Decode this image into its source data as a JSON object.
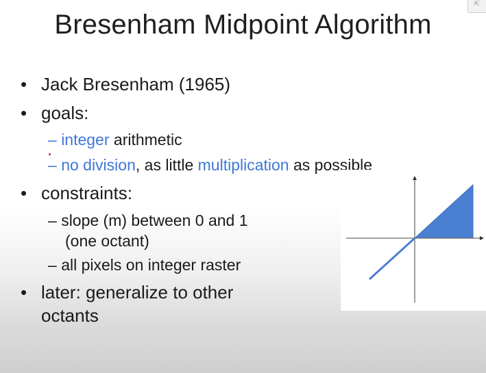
{
  "slide": {
    "title": "Bresenham Midpoint Algorithm",
    "bullet_symbol": "•",
    "dash_symbol": "–",
    "bullets": [
      {
        "text": "Jack Bresenham (1965)"
      },
      {
        "text": "goals:"
      },
      {
        "text": "constraints:"
      },
      {
        "text_line1": "later: generalize to other",
        "text_line2": "octants"
      }
    ],
    "goals": {
      "item1": {
        "highlight": "integer",
        "rest": " arithmetic"
      },
      "item2": {
        "highlight1": "no division",
        "middle": ", as little ",
        "highlight2": "multiplication",
        "rest": " as possible"
      }
    },
    "constraints": {
      "item1_line1": "slope (m) between 0 and 1",
      "item1_line2": "(one octant)",
      "item2": "all pixels on integer raster"
    }
  },
  "colors": {
    "highlight": "#3d78d8",
    "octant_fill": "#4a7fd1"
  },
  "diagram": {
    "description_icon": "octant-diagram",
    "highlighted_octant": "first octant (0 <= m <= 1)"
  }
}
